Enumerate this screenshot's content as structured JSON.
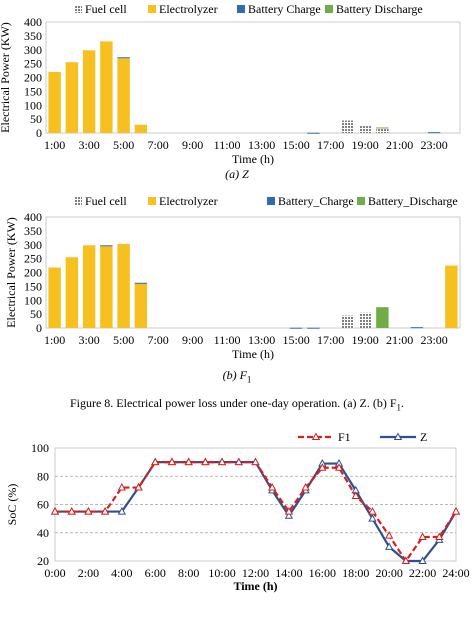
{
  "legend": {
    "fuel_cell": "Fuel cell",
    "electrolyzer": "Electrolyzer",
    "battery_charge_a": "Battery  Charge",
    "battery_discharge_a": "Battery  Discharge",
    "battery_charge_b": "Battery_Charge",
    "battery_discharge_b": "Battery_Discharge"
  },
  "colors": {
    "fuel_cell": "#7f7f7f",
    "electrolyzer": "#f5c020",
    "battery_charge": "#2e6db4",
    "battery_discharge": "#70ad47",
    "f1_line": "#d62020",
    "z_line": "#2f4f8f",
    "grid": "#bdbdbd"
  },
  "figure8": {
    "caption": "Figure 8.     Electrical power loss under one-day operation. (a) Z. (b) F",
    "caption_sub": "1",
    "caption_end": "."
  },
  "chart_data": [
    {
      "type": "bar",
      "stacked": true,
      "subcaption": "(a) Z",
      "xlabel": "Time (h)",
      "ylabel": "Electrical Power (KW)",
      "ylim": [
        0,
        400
      ],
      "yticks": [
        0,
        50,
        100,
        150,
        200,
        250,
        300,
        350,
        400
      ],
      "categories": [
        "1:00",
        "2:00",
        "3:00",
        "4:00",
        "5:00",
        "6:00",
        "7:00",
        "8:00",
        "9:00",
        "10:00",
        "11:00",
        "12:00",
        "13:00",
        "14:00",
        "15:00",
        "16:00",
        "17:00",
        "18:00",
        "19:00",
        "20:00",
        "21:00",
        "22:00",
        "23:00",
        "24:00"
      ],
      "xtick_labels": [
        "1:00",
        "3:00",
        "5:00",
        "7:00",
        "9:00",
        "11:00",
        "13:00",
        "15:00",
        "17:00",
        "19:00",
        "21:00",
        "23:00"
      ],
      "series": [
        {
          "name": "Fuel cell",
          "color": "fuel_cell",
          "values": [
            0,
            0,
            0,
            0,
            0,
            0,
            0,
            0,
            0,
            0,
            0,
            0,
            0,
            0,
            0,
            0,
            0,
            45,
            25,
            18,
            0,
            0,
            0,
            0
          ]
        },
        {
          "name": "Electrolyzer",
          "color": "electrolyzer",
          "values": [
            220,
            255,
            298,
            330,
            270,
            30,
            0,
            0,
            0,
            0,
            0,
            0,
            0,
            0,
            0,
            0,
            0,
            0,
            0,
            0,
            0,
            0,
            0,
            0
          ]
        },
        {
          "name": "Battery  Charge",
          "color": "battery_charge",
          "values": [
            0,
            0,
            0,
            0,
            3,
            0,
            0,
            0,
            0,
            0,
            0,
            0,
            0,
            0,
            0,
            1,
            0,
            0,
            0,
            0,
            0,
            0,
            3,
            0
          ]
        },
        {
          "name": "Battery  Discharge",
          "color": "battery_discharge",
          "values": [
            0,
            0,
            0,
            0,
            0,
            0,
            0,
            0,
            0,
            0,
            0,
            0,
            0,
            0,
            0,
            0,
            0,
            0,
            0,
            2,
            0,
            0,
            0,
            0
          ]
        }
      ]
    },
    {
      "type": "bar",
      "stacked": true,
      "subcaption": "(b) F",
      "subcaption_sub": "1",
      "xlabel": "Time (h)",
      "ylabel": "Electrical Power (KW)",
      "ylim": [
        0,
        400
      ],
      "yticks": [
        0,
        50,
        100,
        150,
        200,
        250,
        300,
        350,
        400
      ],
      "categories": [
        "1:00",
        "2:00",
        "3:00",
        "4:00",
        "5:00",
        "6:00",
        "7:00",
        "8:00",
        "9:00",
        "10:00",
        "11:00",
        "12:00",
        "13:00",
        "14:00",
        "15:00",
        "16:00",
        "17:00",
        "18:00",
        "19:00",
        "20:00",
        "21:00",
        "22:00",
        "23:00",
        "24:00"
      ],
      "xtick_labels": [
        "1:00",
        "3:00",
        "5:00",
        "7:00",
        "9:00",
        "11:00",
        "13:00",
        "15:00",
        "17:00",
        "19:00",
        "21:00",
        "23:00"
      ],
      "series": [
        {
          "name": "Fuel cell",
          "color": "fuel_cell",
          "values": [
            0,
            0,
            0,
            0,
            0,
            0,
            0,
            0,
            0,
            0,
            0,
            0,
            0,
            0,
            0,
            0,
            0,
            45,
            55,
            0,
            0,
            0,
            0,
            0
          ]
        },
        {
          "name": "Electrolyzer",
          "color": "electrolyzer",
          "values": [
            218,
            255,
            298,
            295,
            303,
            160,
            0,
            0,
            0,
            0,
            0,
            0,
            0,
            0,
            0,
            0,
            0,
            0,
            0,
            0,
            0,
            0,
            0,
            225
          ]
        },
        {
          "name": "Battery_Charge",
          "color": "battery_charge",
          "values": [
            0,
            0,
            0,
            3,
            0,
            3,
            0,
            0,
            0,
            0,
            0,
            0,
            0,
            0,
            1,
            1,
            0,
            0,
            0,
            0,
            0,
            3,
            0,
            0
          ]
        },
        {
          "name": "Battery_Discharge",
          "color": "battery_discharge",
          "values": [
            0,
            0,
            0,
            0,
            0,
            0,
            0,
            0,
            0,
            0,
            0,
            0,
            0,
            0,
            0,
            0,
            0,
            0,
            0,
            75,
            0,
            0,
            0,
            0
          ]
        }
      ]
    },
    {
      "type": "line",
      "xlabel": "Time (h)",
      "ylabel": "SoC (%)",
      "ylim": [
        20,
        100
      ],
      "yticks": [
        20,
        40,
        60,
        80,
        100
      ],
      "xlim": [
        0,
        24
      ],
      "xtick_labels": [
        "0:00",
        "2:00",
        "4:00",
        "6:00",
        "8:00",
        "10:00",
        "12:00",
        "14:00",
        "16:00",
        "18:00",
        "20:00",
        "22:00",
        "24:00"
      ],
      "x": [
        0,
        1,
        2,
        3,
        4,
        5,
        6,
        7,
        8,
        9,
        10,
        11,
        12,
        13,
        14,
        15,
        16,
        17,
        18,
        19,
        20,
        21,
        22,
        23,
        24
      ],
      "series": [
        {
          "name": "F1",
          "color": "f1_line",
          "dashed": true,
          "values": [
            55,
            55,
            55,
            55,
            72,
            72,
            90,
            90,
            90,
            90,
            90,
            90,
            90,
            72,
            55,
            72,
            86,
            86,
            66,
            55,
            38,
            20,
            37,
            37,
            55
          ]
        },
        {
          "name": "Z",
          "color": "z_line",
          "dashed": false,
          "values": [
            55,
            55,
            55,
            55,
            55,
            72,
            90,
            90,
            90,
            90,
            90,
            90,
            90,
            70,
            52,
            70,
            89,
            89,
            70,
            50,
            30,
            20,
            20,
            35,
            55
          ]
        }
      ]
    }
  ]
}
